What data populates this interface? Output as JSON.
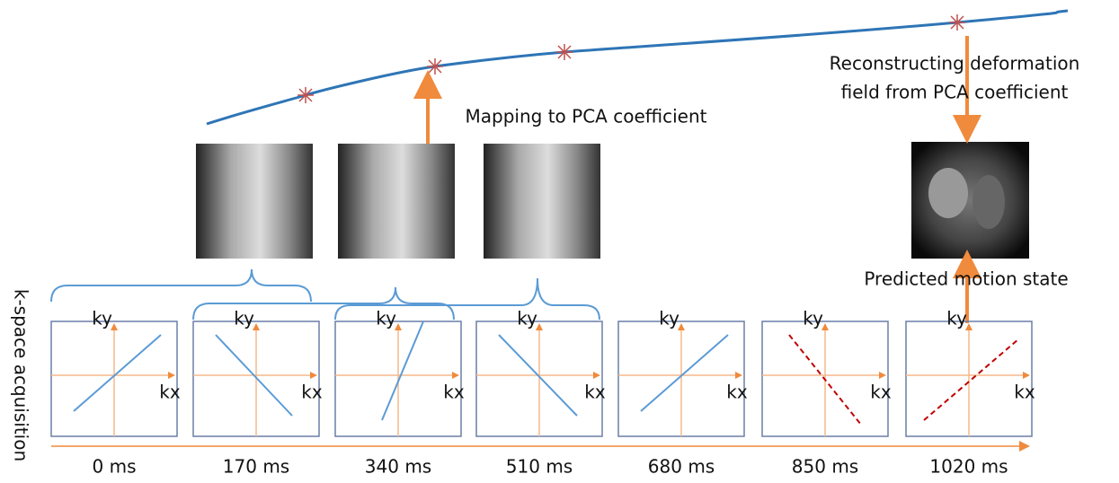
{
  "annotations": {
    "mapping": "Mapping to PCA coefficient",
    "reconstructing_line1": "Reconstructing deformation",
    "reconstructing_line2": "field from PCA coefficient",
    "predicted": "Predicted motion state",
    "side_label": "k-space acquisition"
  },
  "panels": [
    {
      "ky": "ky",
      "kx": "kx",
      "time": "0 ms"
    },
    {
      "ky": "ky",
      "kx": "kx",
      "time": "170 ms"
    },
    {
      "ky": "ky",
      "kx": "kx",
      "time": "340 ms"
    },
    {
      "ky": "ky",
      "kx": "kx",
      "time": "510 ms"
    },
    {
      "ky": "ky",
      "kx": "kx",
      "time": "680 ms"
    },
    {
      "ky": "ky",
      "kx": "kx",
      "time": "850 ms"
    },
    {
      "ky": "ky",
      "kx": "kx",
      "time": "1020 ms"
    }
  ]
}
